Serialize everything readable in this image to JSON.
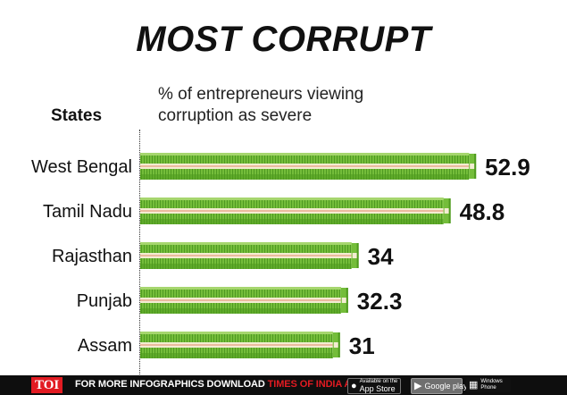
{
  "colors": {
    "bar_dark": "#4e9a1e",
    "bar_main": "#74bd3a",
    "bar_light": "#a6d66e",
    "band": "#f3ecd2",
    "band_line": "#e08a6a",
    "footer_bg": "#0e0e0e",
    "toi_red": "#e21b22"
  },
  "chart_data": {
    "type": "bar",
    "orientation": "horizontal",
    "title": "MOST CORRUPT",
    "subtitle": "% of entrepreneurs viewing corruption as severe",
    "category_header": "States",
    "categories": [
      "West Bengal",
      "Tamil Nadu",
      "Rajasthan",
      "Punjab",
      "Assam"
    ],
    "values": [
      52.9,
      48.8,
      34,
      32.3,
      31
    ],
    "value_labels": [
      "52.9",
      "48.8",
      "34",
      "32.3",
      "31"
    ],
    "xlim": [
      0,
      60
    ],
    "grid": false,
    "legend": "none",
    "bar_style": "stacked banknotes"
  },
  "footer": {
    "logo": "TOI",
    "text_prefix": "FOR MORE  INFOGRAPHICS DOWNLOAD ",
    "text_brand": "TIMES OF INDIA APP",
    "app_store_small": "Available on the",
    "app_store_big": "App Store",
    "google_play": "Google play",
    "windows_top": "Windows",
    "windows_bottom": "Phone",
    "apple_icon": "apple-icon",
    "play_icon": "play-icon",
    "windows_icon": "windows-icon"
  }
}
